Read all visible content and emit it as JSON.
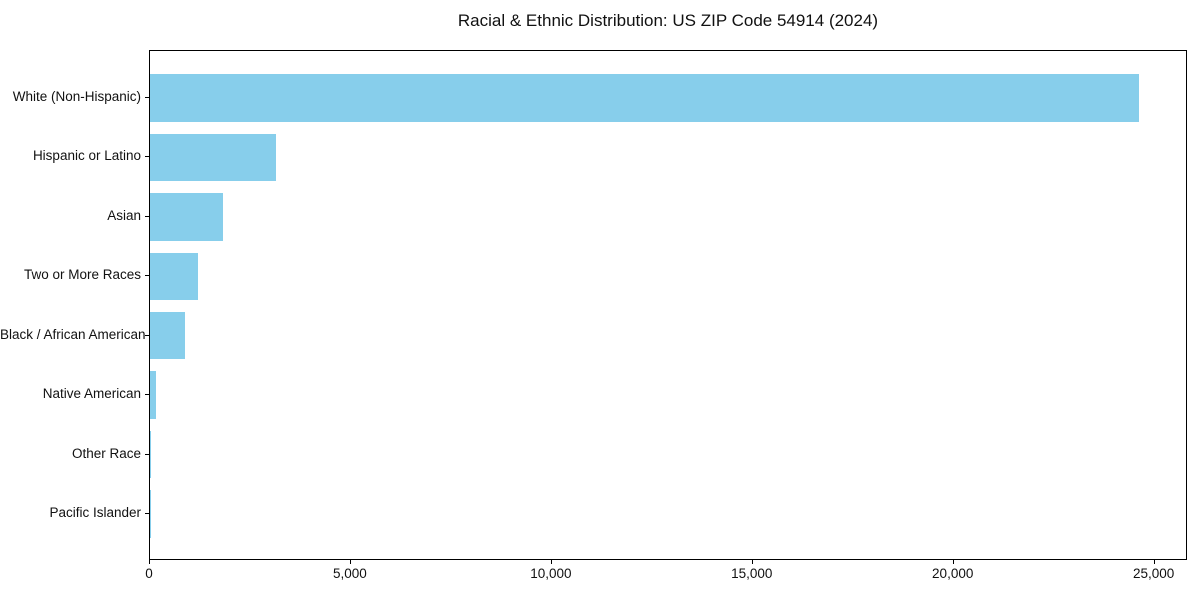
{
  "title": "Racial & Ethnic Distribution: US ZIP Code 54914 (2024)",
  "colors": {
    "bar": "#87CEEB",
    "axis": "#000000",
    "text": "#111111",
    "background": "#ffffff"
  },
  "chart_data": {
    "type": "bar",
    "orientation": "horizontal",
    "title": "Racial & Ethnic Distribution: US ZIP Code 54914 (2024)",
    "xlabel": "",
    "ylabel": "",
    "categories": [
      "White (Non-Hispanic)",
      "Hispanic or Latino",
      "Asian",
      "Two or More Races",
      "Black / African American",
      "Native American",
      "Other Race",
      "Pacific Islander"
    ],
    "values": [
      24600,
      3130,
      1810,
      1200,
      860,
      160,
      30,
      10
    ],
    "xlim": [
      0,
      25830
    ],
    "x_ticks": [
      0,
      5000,
      10000,
      15000,
      20000,
      25000
    ],
    "x_tick_labels": [
      "0",
      "5,000",
      "10,000",
      "15,000",
      "20,000",
      "25,000"
    ],
    "grid": false,
    "legend": false,
    "bar_color": "#87CEEB"
  }
}
